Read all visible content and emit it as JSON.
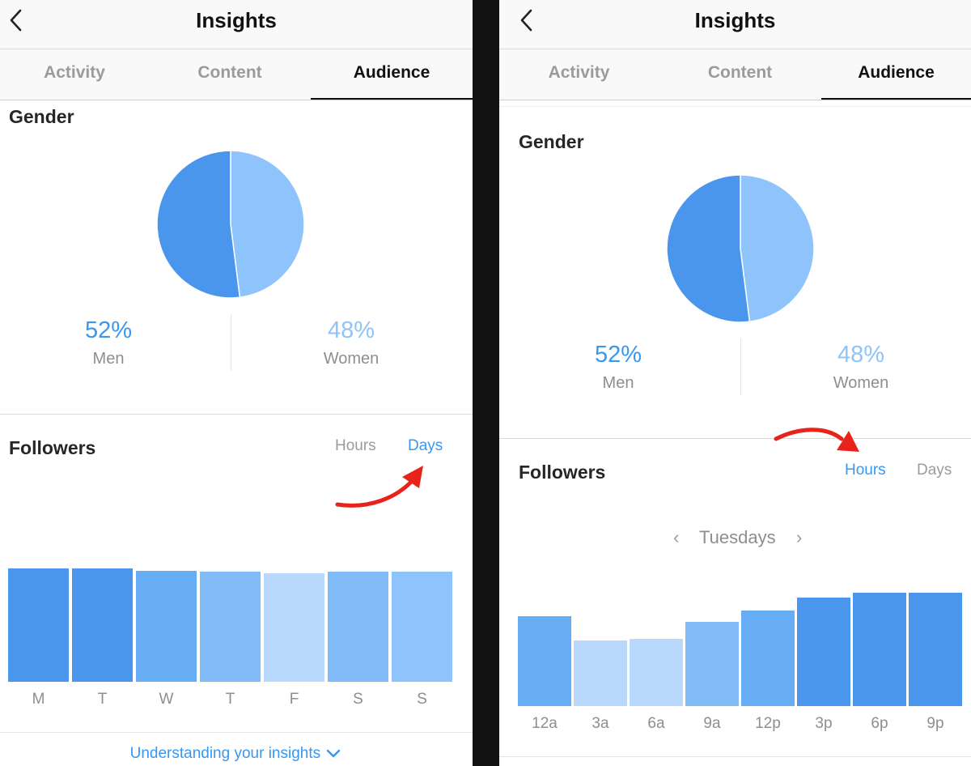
{
  "colors": {
    "men": "#4a96ec",
    "women": "#8fc3fc",
    "accent": "#3897f0",
    "arrow": "#e8231a"
  },
  "left": {
    "header": {
      "title": "Insights"
    },
    "tabs": [
      {
        "label": "Activity",
        "active": false
      },
      {
        "label": "Content",
        "active": false
      },
      {
        "label": "Audience",
        "active": true
      }
    ],
    "gender": {
      "title": "Gender",
      "men": {
        "value": "52%",
        "label": "Men"
      },
      "women": {
        "value": "48%",
        "label": "Women"
      }
    },
    "followers": {
      "title": "Followers",
      "toggle_hours": "Hours",
      "toggle_days": "Days",
      "selected": "Days"
    },
    "footer": {
      "link": "Understanding your insights"
    }
  },
  "right": {
    "header": {
      "title": "Insights"
    },
    "tabs": [
      {
        "label": "Activity",
        "active": false
      },
      {
        "label": "Content",
        "active": false
      },
      {
        "label": "Audience",
        "active": true
      }
    ],
    "gender": {
      "title": "Gender",
      "men": {
        "value": "52%",
        "label": "Men"
      },
      "women": {
        "value": "48%",
        "label": "Women"
      }
    },
    "followers": {
      "title": "Followers",
      "toggle_hours": "Hours",
      "toggle_days": "Days",
      "selected": "Hours",
      "period": "Tuesdays"
    }
  },
  "chart_data": [
    {
      "type": "pie",
      "title": "Gender",
      "categories": [
        "Men",
        "Women"
      ],
      "values": [
        52,
        48
      ]
    },
    {
      "type": "bar",
      "title": "Followers",
      "categories": [
        "M",
        "T",
        "W",
        "T",
        "F",
        "S",
        "S"
      ],
      "values": [
        100,
        100,
        98,
        97,
        96,
        97,
        97
      ],
      "ylim": [
        0,
        100
      ],
      "bar_colors": [
        "#4a96ec",
        "#4a96ec",
        "#66adf6",
        "#80bbf8",
        "#b8d9fc",
        "#80bbf8",
        "#8fc3fc"
      ]
    },
    {
      "type": "pie",
      "title": "Gender",
      "categories": [
        "Men",
        "Women"
      ],
      "values": [
        52,
        48
      ]
    },
    {
      "type": "bar",
      "title": "Followers",
      "subtitle": "Tuesdays",
      "categories": [
        "12a",
        "3a",
        "6a",
        "9a",
        "12p",
        "3p",
        "6p",
        "9p"
      ],
      "values": [
        79,
        58,
        59,
        74,
        84,
        96,
        100,
        100
      ],
      "ylim": [
        0,
        100
      ],
      "bar_colors": [
        "#66adf6",
        "#b8d9fc",
        "#b8d9fc",
        "#80bbf8",
        "#66adf6",
        "#4a96ec",
        "#4a96ec",
        "#4a96ec"
      ]
    }
  ]
}
